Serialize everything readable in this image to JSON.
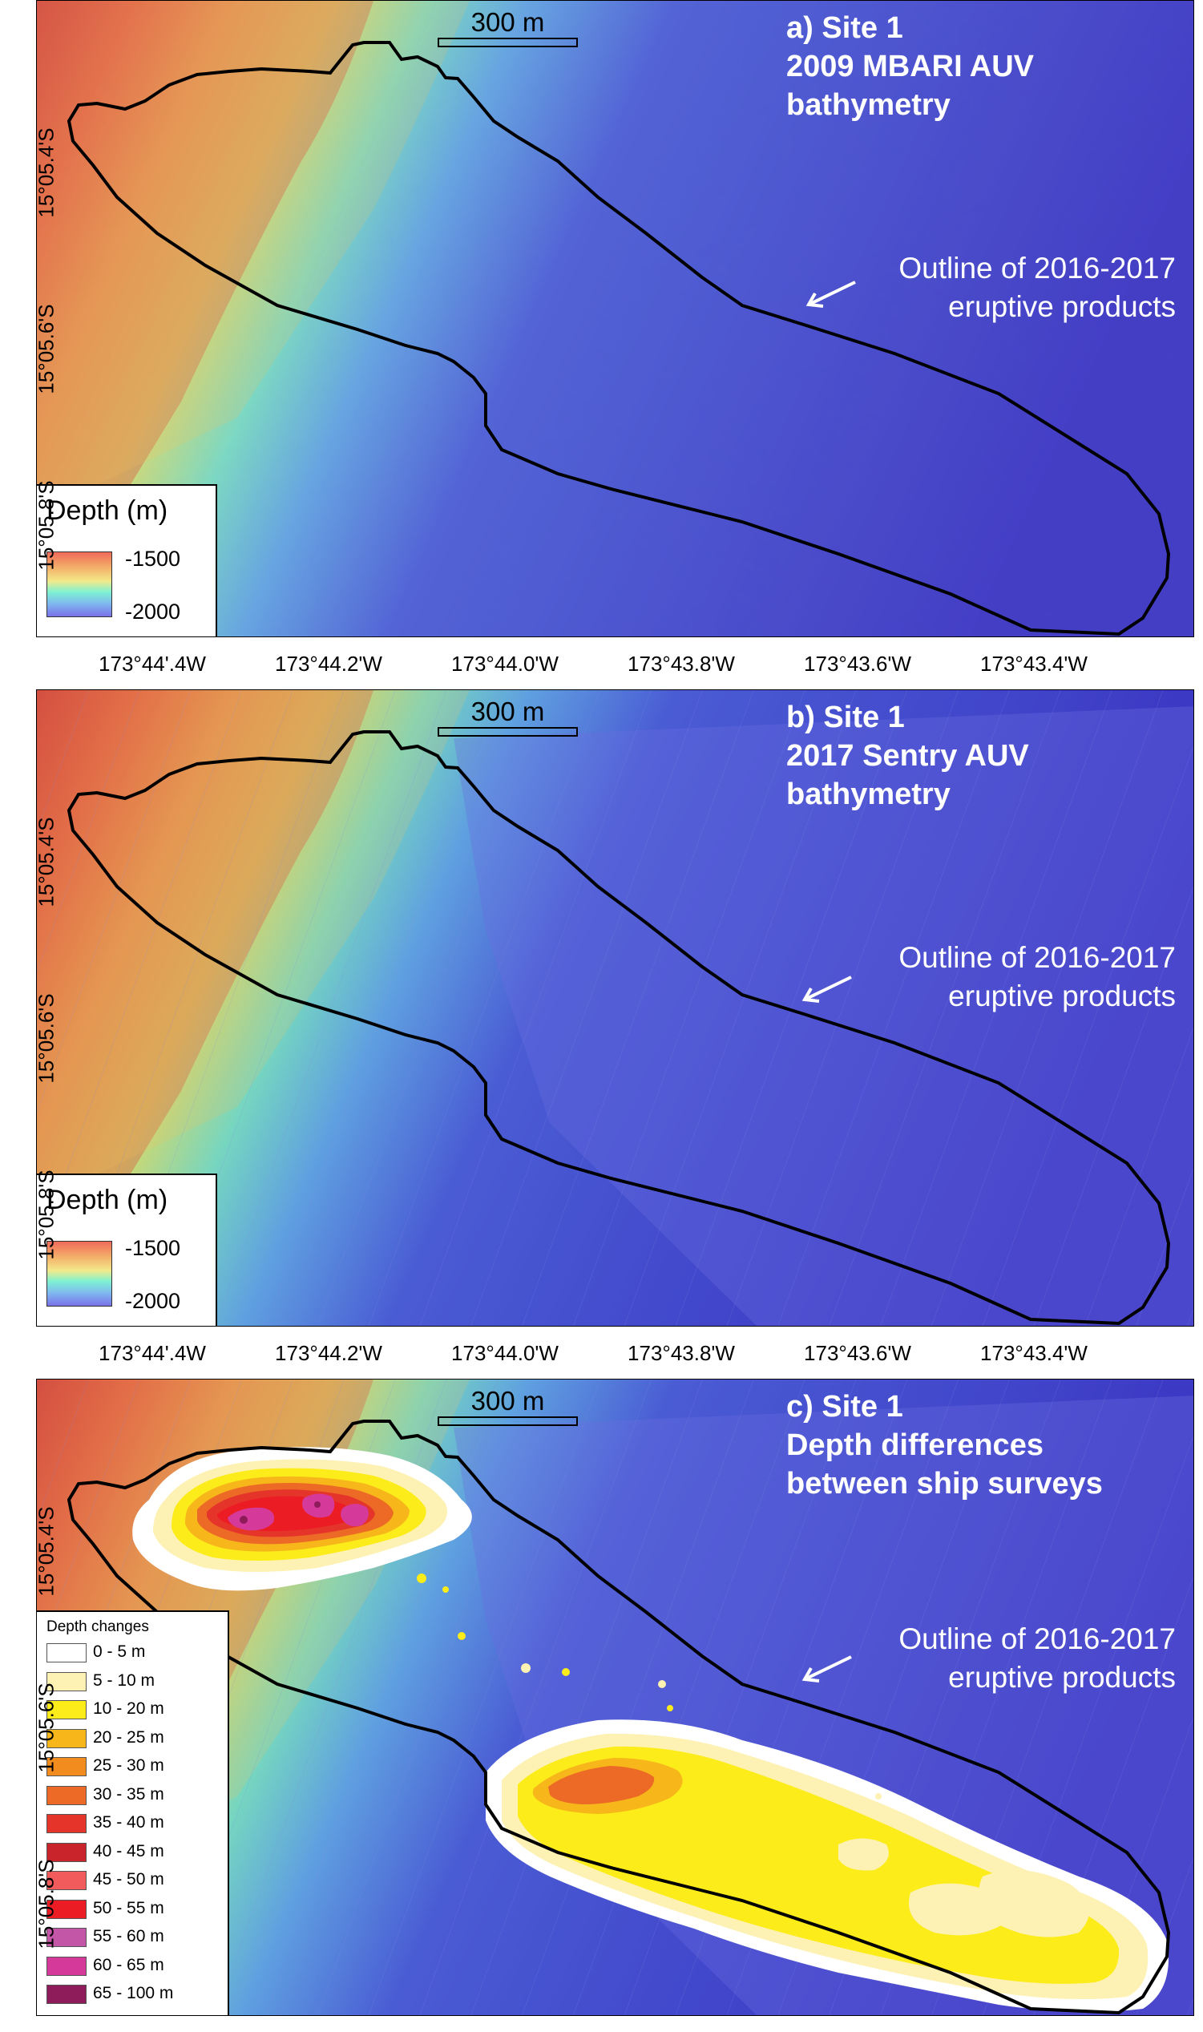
{
  "panels": [
    {
      "title_lines": [
        "a) Site 1",
        "2009 MBARI AUV",
        "bathymetry"
      ],
      "outline_label_lines": [
        "Outline of 2016-2017",
        "eruptive products"
      ]
    },
    {
      "title_lines": [
        "b) Site 1",
        "2017 Sentry AUV",
        "bathymetry"
      ],
      "outline_label_lines": [
        "Outline of 2016-2017",
        "eruptive products"
      ]
    },
    {
      "title_lines": [
        "c) Site 1",
        "Depth differences",
        "between ship surveys"
      ],
      "outline_label_lines": [
        "Outline of 2016-2017",
        "eruptive products"
      ]
    }
  ],
  "scale_bar": {
    "label": "300 m"
  },
  "depth_legend": {
    "title": "Depth (m)",
    "max_label": "-1500",
    "min_label": "-2000"
  },
  "depth_change_legend": {
    "title": "Depth changes",
    "classes": [
      {
        "label": "0 - 5 m",
        "color": "#ffffff"
      },
      {
        "label": "5 - 10 m",
        "color": "#fdf2b3"
      },
      {
        "label": "10 - 20 m",
        "color": "#fbec1a"
      },
      {
        "label": "20 - 25 m",
        "color": "#f7b61a"
      },
      {
        "label": "25 - 30 m",
        "color": "#f28c1e"
      },
      {
        "label": "30 - 35 m",
        "color": "#ec6a25"
      },
      {
        "label": "35 - 40 m",
        "color": "#e5352a"
      },
      {
        "label": "40 - 45 m",
        "color": "#c9242b"
      },
      {
        "label": "45 - 50 m",
        "color": "#f25b5b"
      },
      {
        "label": "50 - 55 m",
        "color": "#ec1c24"
      },
      {
        "label": "55 - 60 m",
        "color": "#c456a8"
      },
      {
        "label": "60 - 65 m",
        "color": "#d53a9a"
      },
      {
        "label": "65 - 100 m",
        "color": "#8e1b5a"
      }
    ]
  },
  "longitude_labels": [
    "173°44'.4W",
    "173°44.2'W",
    "173°44.0'W",
    "173°43.8'W",
    "173°43.6'W",
    "173°43.4'W"
  ],
  "latitude_labels": [
    "15°05.4'S",
    "15°05.6'S",
    "15°05.8'S"
  ],
  "colors": {
    "deep": "#3e38c8",
    "shallow": "#e04a3a",
    "outline": "#000000",
    "annotation_text": "#ffffff"
  }
}
